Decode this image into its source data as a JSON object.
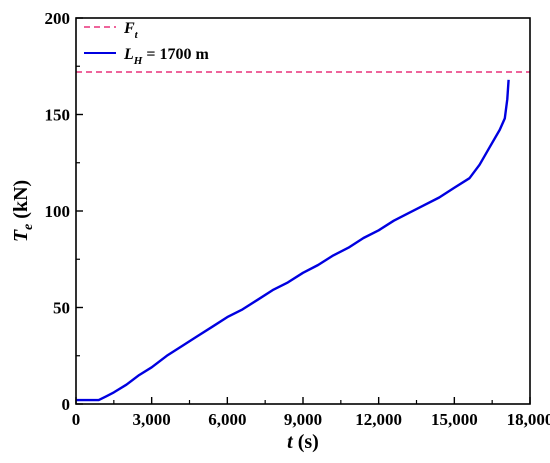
{
  "chart_data": {
    "type": "line",
    "xlabel": {
      "main": "t",
      "unit": " (s)"
    },
    "ylabel": {
      "main": "T",
      "sub": "e",
      "unit": " (kN)"
    },
    "xlim": [
      0,
      18000
    ],
    "ylim": [
      0,
      200
    ],
    "x_ticks": [
      0,
      3000,
      6000,
      9000,
      12000,
      15000,
      18000
    ],
    "x_tick_labels": [
      "0",
      "3,000",
      "6,000",
      "9,000",
      "12,000",
      "15,000",
      "18,000"
    ],
    "y_ticks": [
      0,
      50,
      100,
      150,
      200
    ],
    "y_tick_labels": [
      "0",
      "50",
      "100",
      "150",
      "200"
    ],
    "grid": false,
    "legend_position": "top-left",
    "series": [
      {
        "name": "F_t",
        "legend_main": "F",
        "legend_sub": "t",
        "style": "dashed",
        "color": "#e8317a",
        "x": [
          0,
          18000
        ],
        "y": [
          172,
          172
        ]
      },
      {
        "name": "L_H = 1700 m",
        "legend_main": "L",
        "legend_sub": "H",
        "legend_suffix": " = 1700 m",
        "style": "solid",
        "color": "#0000e0",
        "x": [
          0,
          300,
          600,
          900,
          1200,
          1500,
          2000,
          2500,
          3000,
          3600,
          4200,
          4800,
          5400,
          6000,
          6600,
          7200,
          7800,
          8400,
          9000,
          9600,
          10200,
          10800,
          11400,
          12000,
          12600,
          13200,
          13800,
          14400,
          15000,
          15600,
          16000,
          16400,
          16800,
          17000,
          17100,
          17150
        ],
        "y": [
          2,
          2,
          2,
          2,
          4,
          6,
          10,
          15,
          19,
          25,
          30,
          35,
          40,
          45,
          49,
          54,
          59,
          63,
          68,
          72,
          77,
          81,
          86,
          90,
          95,
          99,
          103,
          107,
          112,
          117,
          124,
          133,
          142,
          148,
          158,
          168
        ]
      }
    ]
  }
}
